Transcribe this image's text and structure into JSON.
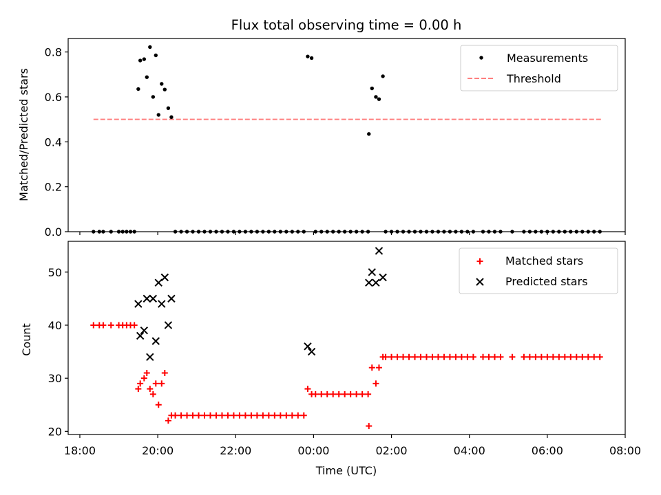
{
  "chart_data": [
    {
      "type": "scatter",
      "title": "Flux total observing time = 0.00 h",
      "xlabel": "",
      "ylabel": "Matched/Predicted stars",
      "xlim": [
        17.7,
        32.0
      ],
      "ylim": [
        0.0,
        0.86
      ],
      "yticks": [
        0.0,
        0.2,
        0.4,
        0.6,
        0.8
      ],
      "ytick_labels": [
        "0.0",
        "0.2",
        "0.4",
        "0.6",
        "0.8"
      ],
      "legend_position": "top-right",
      "series": [
        {
          "name": "Measurements",
          "marker": "dot",
          "color": "#000000",
          "points": [
            [
              18.35,
              0.0
            ],
            [
              18.5,
              0.0
            ],
            [
              18.6,
              0.0
            ],
            [
              18.8,
              0.0
            ],
            [
              19.0,
              0.0
            ],
            [
              19.1,
              0.0
            ],
            [
              19.2,
              0.0
            ],
            [
              19.3,
              0.0
            ],
            [
              19.4,
              0.0
            ],
            [
              19.5,
              0.635
            ],
            [
              19.55,
              0.762
            ],
            [
              19.65,
              0.768
            ],
            [
              19.72,
              0.688
            ],
            [
              19.8,
              0.822
            ],
            [
              19.88,
              0.6
            ],
            [
              19.95,
              0.785
            ],
            [
              20.02,
              0.52
            ],
            [
              20.1,
              0.658
            ],
            [
              20.18,
              0.633
            ],
            [
              20.27,
              0.55
            ],
            [
              20.35,
              0.51
            ],
            [
              20.45,
              0.0
            ],
            [
              20.6,
              0.0
            ],
            [
              20.75,
              0.0
            ],
            [
              20.9,
              0.0
            ],
            [
              21.05,
              0.0
            ],
            [
              21.2,
              0.0
            ],
            [
              21.35,
              0.0
            ],
            [
              21.5,
              0.0
            ],
            [
              21.65,
              0.0
            ],
            [
              21.8,
              0.0
            ],
            [
              21.95,
              0.0
            ],
            [
              22.1,
              0.0
            ],
            [
              22.25,
              0.0
            ],
            [
              22.4,
              0.0
            ],
            [
              22.55,
              0.0
            ],
            [
              22.7,
              0.0
            ],
            [
              22.85,
              0.0
            ],
            [
              23.0,
              0.0
            ],
            [
              23.15,
              0.0
            ],
            [
              23.3,
              0.0
            ],
            [
              23.45,
              0.0
            ],
            [
              23.6,
              0.0
            ],
            [
              23.75,
              0.0
            ],
            [
              23.85,
              0.78
            ],
            [
              23.95,
              0.773
            ],
            [
              24.05,
              0.0
            ],
            [
              24.2,
              0.0
            ],
            [
              24.35,
              0.0
            ],
            [
              24.5,
              0.0
            ],
            [
              24.65,
              0.0
            ],
            [
              24.8,
              0.0
            ],
            [
              24.95,
              0.0
            ],
            [
              25.1,
              0.0
            ],
            [
              25.25,
              0.0
            ],
            [
              25.4,
              0.0
            ],
            [
              25.42,
              0.435
            ],
            [
              25.5,
              0.638
            ],
            [
              25.6,
              0.6
            ],
            [
              25.68,
              0.59
            ],
            [
              25.78,
              0.692
            ],
            [
              25.85,
              0.0
            ],
            [
              26.0,
              0.0
            ],
            [
              26.15,
              0.0
            ],
            [
              26.3,
              0.0
            ],
            [
              26.45,
              0.0
            ],
            [
              26.6,
              0.0
            ],
            [
              26.75,
              0.0
            ],
            [
              26.9,
              0.0
            ],
            [
              27.05,
              0.0
            ],
            [
              27.2,
              0.0
            ],
            [
              27.35,
              0.0
            ],
            [
              27.5,
              0.0
            ],
            [
              27.65,
              0.0
            ],
            [
              27.8,
              0.0
            ],
            [
              27.95,
              0.0
            ],
            [
              28.1,
              0.0
            ],
            [
              28.35,
              0.0
            ],
            [
              28.5,
              0.0
            ],
            [
              28.65,
              0.0
            ],
            [
              28.8,
              0.0
            ],
            [
              29.1,
              0.0
            ],
            [
              29.4,
              0.0
            ],
            [
              29.55,
              0.0
            ],
            [
              29.7,
              0.0
            ],
            [
              29.85,
              0.0
            ],
            [
              30.0,
              0.0
            ],
            [
              30.15,
              0.0
            ],
            [
              30.3,
              0.0
            ],
            [
              30.45,
              0.0
            ],
            [
              30.6,
              0.0
            ],
            [
              30.75,
              0.0
            ],
            [
              30.9,
              0.0
            ],
            [
              31.05,
              0.0
            ],
            [
              31.2,
              0.0
            ],
            [
              31.35,
              0.0
            ]
          ]
        },
        {
          "name": "Threshold",
          "marker": "dashed-line",
          "color": "#ff7f7f",
          "points": [
            [
              18.35,
              0.5
            ],
            [
              31.4,
              0.5
            ]
          ]
        }
      ]
    },
    {
      "type": "scatter",
      "title": "",
      "xlabel": "Time (UTC)",
      "ylabel": "Count",
      "xlim": [
        17.7,
        32.0
      ],
      "ylim": [
        19.4,
        55.8
      ],
      "xticks": [
        18,
        20,
        22,
        24,
        26,
        28,
        30,
        32
      ],
      "xtick_labels": [
        "18:00",
        "20:00",
        "22:00",
        "00:00",
        "02:00",
        "04:00",
        "06:00",
        "08:00"
      ],
      "yticks": [
        20,
        30,
        40,
        50
      ],
      "ytick_labels": [
        "20",
        "30",
        "40",
        "50"
      ],
      "legend_position": "top-right",
      "series": [
        {
          "name": "Matched stars",
          "marker": "plus",
          "color": "#ff0000",
          "points": [
            [
              18.35,
              40
            ],
            [
              18.5,
              40
            ],
            [
              18.6,
              40
            ],
            [
              18.8,
              40
            ],
            [
              19.0,
              40
            ],
            [
              19.1,
              40
            ],
            [
              19.2,
              40
            ],
            [
              19.3,
              40
            ],
            [
              19.4,
              40
            ],
            [
              19.5,
              28
            ],
            [
              19.55,
              29
            ],
            [
              19.65,
              30
            ],
            [
              19.72,
              31
            ],
            [
              19.8,
              28
            ],
            [
              19.88,
              27
            ],
            [
              19.95,
              29
            ],
            [
              20.02,
              25
            ],
            [
              20.1,
              29
            ],
            [
              20.18,
              31
            ],
            [
              20.27,
              22
            ],
            [
              20.35,
              23
            ],
            [
              20.45,
              23
            ],
            [
              20.6,
              23
            ],
            [
              20.75,
              23
            ],
            [
              20.9,
              23
            ],
            [
              21.05,
              23
            ],
            [
              21.2,
              23
            ],
            [
              21.35,
              23
            ],
            [
              21.5,
              23
            ],
            [
              21.65,
              23
            ],
            [
              21.8,
              23
            ],
            [
              21.95,
              23
            ],
            [
              22.1,
              23
            ],
            [
              22.25,
              23
            ],
            [
              22.4,
              23
            ],
            [
              22.55,
              23
            ],
            [
              22.7,
              23
            ],
            [
              22.85,
              23
            ],
            [
              23.0,
              23
            ],
            [
              23.15,
              23
            ],
            [
              23.3,
              23
            ],
            [
              23.45,
              23
            ],
            [
              23.6,
              23
            ],
            [
              23.75,
              23
            ],
            [
              23.85,
              28
            ],
            [
              23.95,
              27
            ],
            [
              24.05,
              27
            ],
            [
              24.2,
              27
            ],
            [
              24.35,
              27
            ],
            [
              24.5,
              27
            ],
            [
              24.65,
              27
            ],
            [
              24.8,
              27
            ],
            [
              24.95,
              27
            ],
            [
              25.1,
              27
            ],
            [
              25.25,
              27
            ],
            [
              25.4,
              27
            ],
            [
              25.42,
              21
            ],
            [
              25.5,
              32
            ],
            [
              25.6,
              29
            ],
            [
              25.68,
              32
            ],
            [
              25.78,
              34
            ],
            [
              25.85,
              34
            ],
            [
              26.0,
              34
            ],
            [
              26.15,
              34
            ],
            [
              26.3,
              34
            ],
            [
              26.45,
              34
            ],
            [
              26.6,
              34
            ],
            [
              26.75,
              34
            ],
            [
              26.9,
              34
            ],
            [
              27.05,
              34
            ],
            [
              27.2,
              34
            ],
            [
              27.35,
              34
            ],
            [
              27.5,
              34
            ],
            [
              27.65,
              34
            ],
            [
              27.8,
              34
            ],
            [
              27.95,
              34
            ],
            [
              28.1,
              34
            ],
            [
              28.35,
              34
            ],
            [
              28.5,
              34
            ],
            [
              28.65,
              34
            ],
            [
              28.8,
              34
            ],
            [
              29.1,
              34
            ],
            [
              29.4,
              34
            ],
            [
              29.55,
              34
            ],
            [
              29.7,
              34
            ],
            [
              29.85,
              34
            ],
            [
              30.0,
              34
            ],
            [
              30.15,
              34
            ],
            [
              30.3,
              34
            ],
            [
              30.45,
              34
            ],
            [
              30.6,
              34
            ],
            [
              30.75,
              34
            ],
            [
              30.9,
              34
            ],
            [
              31.05,
              34
            ],
            [
              31.2,
              34
            ],
            [
              31.35,
              34
            ]
          ]
        },
        {
          "name": "Predicted stars",
          "marker": "x",
          "color": "#000000",
          "points": [
            [
              19.5,
              44
            ],
            [
              19.55,
              38
            ],
            [
              19.65,
              39
            ],
            [
              19.72,
              45
            ],
            [
              19.8,
              34
            ],
            [
              19.88,
              45
            ],
            [
              19.95,
              37
            ],
            [
              20.02,
              48
            ],
            [
              20.1,
              44
            ],
            [
              20.18,
              49
            ],
            [
              20.27,
              40
            ],
            [
              20.35,
              45
            ],
            [
              23.85,
              36
            ],
            [
              23.95,
              35
            ],
            [
              25.42,
              48
            ],
            [
              25.5,
              50
            ],
            [
              25.6,
              48
            ],
            [
              25.68,
              54
            ],
            [
              25.78,
              49
            ]
          ]
        }
      ]
    }
  ]
}
